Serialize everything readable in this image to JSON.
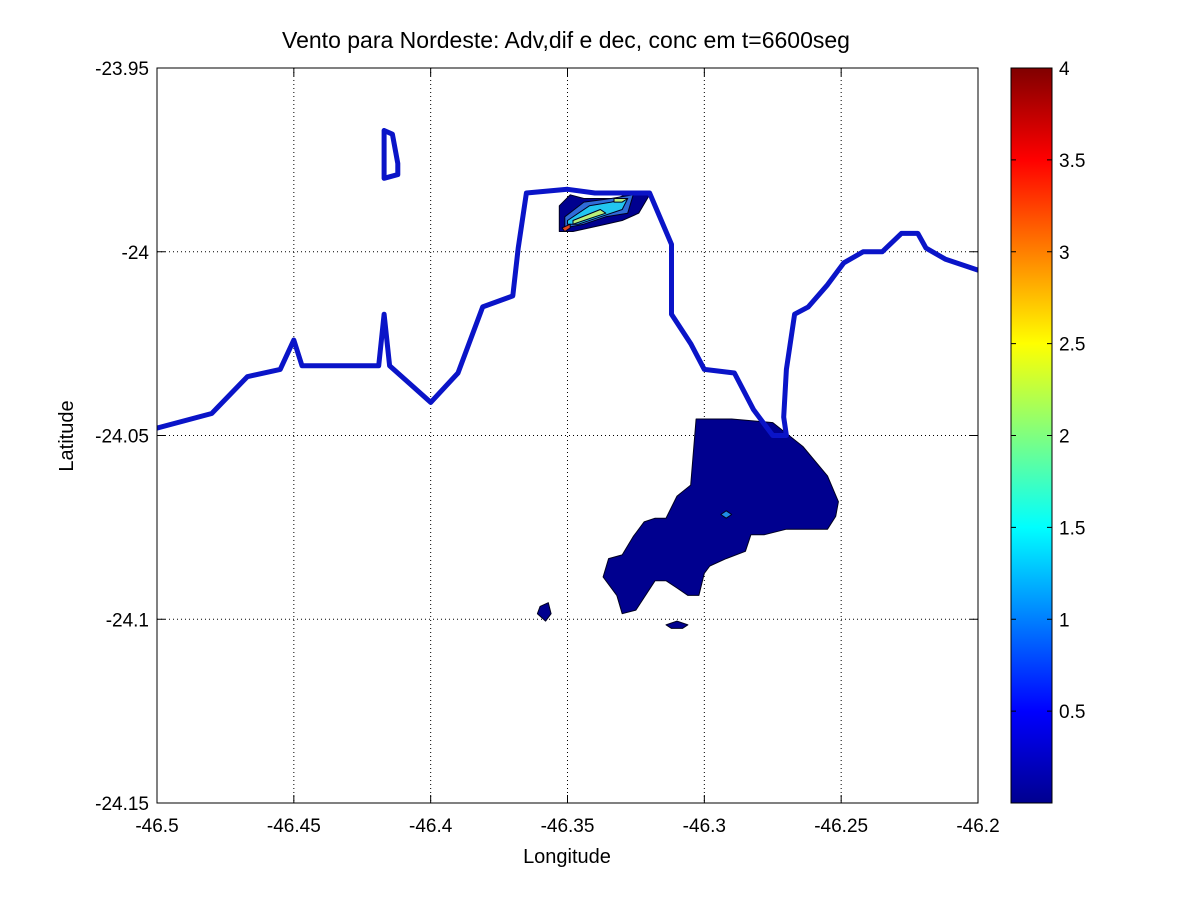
{
  "chart_data": {
    "type": "contour",
    "title": "Vento para Nordeste: Adv,dif e dec, conc em t=6600seg",
    "xlabel": "Longitude",
    "ylabel": "Latitude",
    "xlim": [
      -46.5,
      -46.2
    ],
    "ylim": [
      -24.15,
      -23.95
    ],
    "xticks": [
      "-46.5",
      "-46.45",
      "-46.4",
      "-46.35",
      "-46.3",
      "-46.25",
      "-46.2"
    ],
    "xtick_values": [
      -46.5,
      -46.45,
      -46.4,
      -46.35,
      -46.3,
      -46.25,
      -46.2
    ],
    "yticks": [
      "-23.95",
      "-24",
      "-24.05",
      "-24.1",
      "-24.15"
    ],
    "ytick_values": [
      -23.95,
      -24.0,
      -24.05,
      -24.1,
      -24.15
    ],
    "grid": true,
    "grid_style": "dotted",
    "colormap": "jet",
    "colorbar": {
      "placement": "right",
      "range": [
        0,
        4
      ],
      "ticks": [
        "0.5",
        "1",
        "1.5",
        "2",
        "2.5",
        "3",
        "3.5",
        "4"
      ],
      "tick_values": [
        0.5,
        1,
        1.5,
        2,
        2.5,
        3,
        3.5,
        4
      ]
    },
    "coastline": {
      "color": "#0a14c8",
      "main": [
        [
          -46.5,
          -24.048
        ],
        [
          -46.48,
          -24.044
        ],
        [
          -46.467,
          -24.034
        ],
        [
          -46.455,
          -24.032
        ],
        [
          -46.45,
          -24.024
        ],
        [
          -46.447,
          -24.031
        ],
        [
          -46.419,
          -24.031
        ],
        [
          -46.417,
          -24.017
        ],
        [
          -46.415,
          -24.031
        ],
        [
          -46.4,
          -24.041
        ],
        [
          -46.39,
          -24.033
        ],
        [
          -46.381,
          -24.015
        ],
        [
          -46.37,
          -24.012
        ],
        [
          -46.368,
          -23.999
        ],
        [
          -46.365,
          -23.984
        ],
        [
          -46.35,
          -23.983
        ],
        [
          -46.34,
          -23.984
        ],
        [
          -46.33,
          -23.984
        ],
        [
          -46.32,
          -23.984
        ],
        [
          -46.312,
          -23.998
        ],
        [
          -46.312,
          -24.017
        ],
        [
          -46.305,
          -24.025
        ],
        [
          -46.3,
          -24.032
        ],
        [
          -46.289,
          -24.033
        ],
        [
          -46.282,
          -24.043
        ],
        [
          -46.275,
          -24.05
        ],
        [
          -46.27,
          -24.05
        ],
        [
          -46.271,
          -24.045
        ],
        [
          -46.27,
          -24.032
        ],
        [
          -46.267,
          -24.017
        ],
        [
          -46.262,
          -24.015
        ],
        [
          -46.255,
          -24.009
        ],
        [
          -46.249,
          -24.003
        ],
        [
          -46.242,
          -24.0
        ],
        [
          -46.235,
          -24.0
        ],
        [
          -46.228,
          -23.995
        ],
        [
          -46.223,
          -23.995
        ],
        [
          -46.222,
          -23.995
        ],
        [
          -46.219,
          -23.999
        ],
        [
          -46.212,
          -24.002
        ],
        [
          -46.2,
          -24.005
        ]
      ],
      "islet": [
        [
          -46.417,
          -23.967
        ],
        [
          -46.414,
          -23.968
        ],
        [
          -46.412,
          -23.976
        ],
        [
          -46.412,
          -23.979
        ],
        [
          -46.417,
          -23.98
        ],
        [
          -46.417,
          -23.967
        ]
      ]
    },
    "filled_contours": [
      {
        "level": 0.1,
        "color": "#00008f",
        "polygon": [
          [
            -46.303,
            -24.0455
          ],
          [
            -46.29,
            -24.0455
          ],
          [
            -46.275,
            -24.0465
          ],
          [
            -46.264,
            -24.053
          ],
          [
            -46.255,
            -24.061
          ],
          [
            -46.251,
            -24.068
          ],
          [
            -46.252,
            -24.072
          ],
          [
            -46.255,
            -24.0755
          ],
          [
            -46.27,
            -24.0755
          ],
          [
            -46.278,
            -24.077
          ],
          [
            -46.283,
            -24.077
          ],
          [
            -46.285,
            -24.0815
          ],
          [
            -46.292,
            -24.0835
          ],
          [
            -46.298,
            -24.0855
          ],
          [
            -46.3,
            -24.0875
          ],
          [
            -46.302,
            -24.0935
          ],
          [
            -46.306,
            -24.0935
          ],
          [
            -46.31,
            -24.0915
          ],
          [
            -46.314,
            -24.0895
          ],
          [
            -46.318,
            -24.0895
          ],
          [
            -46.325,
            -24.0975
          ],
          [
            -46.33,
            -24.0985
          ],
          [
            -46.332,
            -24.0935
          ],
          [
            -46.337,
            -24.0885
          ],
          [
            -46.335,
            -24.0835
          ],
          [
            -46.33,
            -24.0825
          ],
          [
            -46.326,
            -24.0775
          ],
          [
            -46.322,
            -24.0735
          ],
          [
            -46.318,
            -24.0725
          ],
          [
            -46.314,
            -24.0725
          ],
          [
            -46.31,
            -24.0665
          ],
          [
            -46.305,
            -24.0635
          ],
          [
            -46.303,
            -24.0455
          ]
        ]
      },
      {
        "level": 0.1,
        "color": "#00008f",
        "polygon": [
          [
            -46.36,
            -24.0965
          ],
          [
            -46.357,
            -24.0955
          ],
          [
            -46.356,
            -24.0985
          ],
          [
            -46.358,
            -24.1005
          ],
          [
            -46.361,
            -24.0985
          ],
          [
            -46.36,
            -24.0965
          ]
        ]
      },
      {
        "level": 0.1,
        "color": "#00008f",
        "polygon": [
          [
            -46.314,
            -24.1015
          ],
          [
            -46.31,
            -24.1005
          ],
          [
            -46.306,
            -24.1015
          ],
          [
            -46.308,
            -24.1025
          ],
          [
            -46.312,
            -24.1025
          ],
          [
            -46.314,
            -24.1015
          ]
        ]
      },
      {
        "level": 0.1,
        "color": "#00008f",
        "polygon": [
          [
            -46.353,
            -23.9875
          ],
          [
            -46.349,
            -23.9845
          ],
          [
            -46.344,
            -23.9855
          ],
          [
            -46.338,
            -23.9855
          ],
          [
            -46.332,
            -23.9855
          ],
          [
            -46.326,
            -23.9835
          ],
          [
            -46.32,
            -23.9845
          ],
          [
            -46.324,
            -23.9895
          ],
          [
            -46.33,
            -23.9915
          ],
          [
            -46.336,
            -23.9925
          ],
          [
            -46.342,
            -23.9935
          ],
          [
            -46.348,
            -23.9945
          ],
          [
            -46.353,
            -23.9945
          ],
          [
            -46.353,
            -23.9875
          ]
        ]
      },
      {
        "level": 0.7,
        "color": "#2f6cd8",
        "polygon": [
          [
            -46.351,
            -23.9905
          ],
          [
            -46.344,
            -23.9865
          ],
          [
            -46.334,
            -23.9855
          ],
          [
            -46.326,
            -23.9845
          ],
          [
            -46.328,
            -23.9895
          ],
          [
            -46.336,
            -23.9905
          ],
          [
            -46.344,
            -23.9925
          ],
          [
            -46.351,
            -23.9935
          ],
          [
            -46.351,
            -23.9905
          ]
        ]
      },
      {
        "level": 1.3,
        "color": "#22c6f0",
        "polygon": [
          [
            -46.35,
            -23.9915
          ],
          [
            -46.342,
            -23.9875
          ],
          [
            -46.334,
            -23.9865
          ],
          [
            -46.328,
            -23.9855
          ],
          [
            -46.33,
            -23.9885
          ],
          [
            -46.338,
            -23.9905
          ],
          [
            -46.346,
            -23.9925
          ],
          [
            -46.35,
            -23.9925
          ],
          [
            -46.35,
            -23.9915
          ]
        ]
      },
      {
        "level": 1.9,
        "color": "#b7f07a",
        "polygon": [
          [
            -46.348,
            -23.9915
          ],
          [
            -46.338,
            -23.9885
          ],
          [
            -46.336,
            -23.9895
          ],
          [
            -46.344,
            -23.9915
          ],
          [
            -46.348,
            -23.9925
          ],
          [
            -46.348,
            -23.9915
          ]
        ]
      },
      {
        "level": 1.9,
        "color": "#b7f07a",
        "polygon": [
          [
            -46.333,
            -23.9855
          ],
          [
            -46.328,
            -23.9855
          ],
          [
            -46.33,
            -23.9865
          ],
          [
            -46.333,
            -23.9865
          ],
          [
            -46.333,
            -23.9855
          ]
        ]
      },
      {
        "level": 3.1,
        "color": "#e2471e",
        "polygon": [
          [
            -46.352,
            -23.9935
          ],
          [
            -46.349,
            -23.9925
          ],
          [
            -46.349,
            -23.9935
          ],
          [
            -46.351,
            -23.9945
          ],
          [
            -46.352,
            -23.9935
          ]
        ]
      },
      {
        "level": 1.0,
        "color": "#1f8ce6",
        "polygon": [
          [
            -46.294,
            -24.0715
          ],
          [
            -46.292,
            -24.0705
          ],
          [
            -46.29,
            -24.0715
          ],
          [
            -46.292,
            -24.0725
          ],
          [
            -46.294,
            -24.0715
          ]
        ]
      }
    ]
  }
}
